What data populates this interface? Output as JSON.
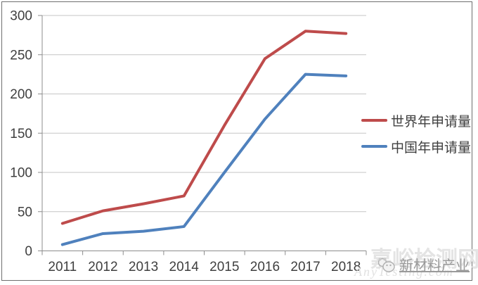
{
  "chart_data": {
    "type": "line",
    "categories": [
      "2011",
      "2012",
      "2013",
      "2014",
      "2015",
      "2016",
      "2017",
      "2018"
    ],
    "series": [
      {
        "name": "世界年申请量",
        "color": "#BE4B4B",
        "values": [
          35,
          51,
          60,
          70,
          160,
          245,
          280,
          277
        ]
      },
      {
        "name": "中国年申请量",
        "color": "#4F81BD",
        "values": [
          8,
          22,
          25,
          31,
          100,
          168,
          225,
          223
        ]
      }
    ],
    "title": "",
    "xlabel": "",
    "ylabel": "",
    "ylim": [
      0,
      300
    ],
    "y_ticks": [
      0,
      50,
      100,
      150,
      200,
      250,
      300
    ],
    "grid": true,
    "legend_position": "right"
  },
  "colors": {
    "gridline": "#c6c6c6",
    "axis": "#8c8c8c",
    "tick_text": "#3f3f3f",
    "frame_border": "#6e6e6e",
    "background": "#ffffff",
    "series_world": "#BE4B4B",
    "series_china": "#4F81BD"
  },
  "watermarks": {
    "site_name": "嘉峪检测网",
    "site_url": "AnyTesting.com",
    "brand": "新材料产业"
  }
}
